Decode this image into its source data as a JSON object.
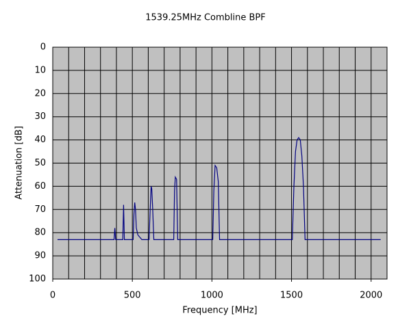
{
  "chart_data": {
    "type": "line",
    "title": "1539.25MHz Combline BPF",
    "x_label": "Frequency [MHz]",
    "y_label": "Attenuation [dB]",
    "x": [
      30,
      385,
      390,
      395,
      440,
      445,
      450,
      505,
      510,
      515,
      520,
      525,
      535,
      560,
      605,
      612,
      618,
      622,
      628,
      635,
      760,
      765,
      770,
      778,
      785,
      1005,
      1012,
      1020,
      1030,
      1040,
      1048,
      1505,
      1515,
      1525,
      1535,
      1545,
      1555,
      1565,
      1575,
      1585,
      2060
    ],
    "series": [
      {
        "color": "#000080",
        "values": [
          83,
          83,
          78,
          83,
          83,
          68,
          83,
          83,
          72,
          67,
          70,
          78,
          81,
          83,
          83,
          70,
          60,
          61,
          70,
          83,
          83,
          62,
          56,
          57,
          83,
          83,
          62,
          51,
          52,
          58,
          83,
          83,
          60,
          45,
          40,
          39,
          40,
          47,
          60,
          83,
          83
        ]
      }
    ],
    "xlim": [
      0,
      2100
    ],
    "xticks": [
      0,
      500,
      1000,
      1500,
      2000
    ],
    "x_minor_step": 100,
    "ylim": [
      100,
      0
    ],
    "yticks": [
      0,
      10,
      20,
      30,
      40,
      50,
      60,
      70,
      80,
      90,
      100
    ],
    "grid": true,
    "plot_background": "#c0c0c0"
  }
}
